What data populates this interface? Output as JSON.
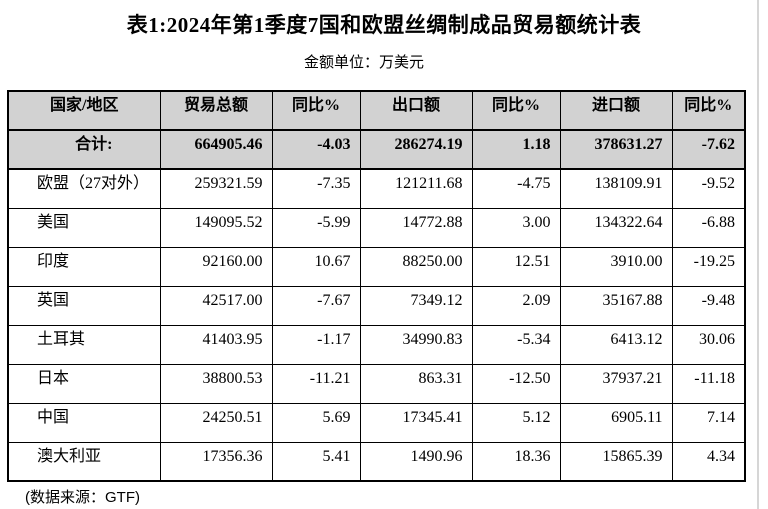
{
  "page": {
    "title": "表1:2024年第1季度7国和欧盟丝绸制成品贸易额统计表",
    "subtitle": "金额单位：万美元",
    "footer": "(数据来源：GTF)"
  },
  "table": {
    "headers": [
      "国家/地区",
      "贸易总额",
      "同比%",
      "出口额",
      "同比%",
      "进口额",
      "同比%"
    ],
    "total_row": {
      "label": "合计:",
      "values": [
        "664905.46",
        "-4.03",
        "286274.19",
        "1.18",
        "378631.27",
        "-7.62"
      ]
    },
    "rows": [
      {
        "label": "欧盟（27对外）",
        "values": [
          "259321.59",
          "-7.35",
          "121211.68",
          "-4.75",
          "138109.91",
          "-9.52"
        ]
      },
      {
        "label": "美国",
        "values": [
          "149095.52",
          "-5.99",
          "14772.88",
          "3.00",
          "134322.64",
          "-6.88"
        ]
      },
      {
        "label": "印度",
        "values": [
          "92160.00",
          "10.67",
          "88250.00",
          "12.51",
          "3910.00",
          "-19.25"
        ]
      },
      {
        "label": "英国",
        "values": [
          "42517.00",
          "-7.67",
          "7349.12",
          "2.09",
          "35167.88",
          "-9.48"
        ]
      },
      {
        "label": "土耳其",
        "values": [
          "41403.95",
          "-1.17",
          "34990.83",
          "-5.34",
          "6413.12",
          "30.06"
        ]
      },
      {
        "label": "日本",
        "values": [
          "38800.53",
          "-11.21",
          "863.31",
          "-12.50",
          "37937.21",
          "-11.18"
        ]
      },
      {
        "label": "中国",
        "values": [
          "24250.51",
          "5.69",
          "17345.41",
          "5.12",
          "6905.11",
          "7.14"
        ]
      },
      {
        "label": "澳大利亚",
        "values": [
          "17356.36",
          "5.41",
          "1490.96",
          "18.36",
          "15865.39",
          "4.34"
        ]
      }
    ]
  },
  "colors": {
    "row_shading": "#d2d2d2",
    "table_border": "#000000",
    "page_edge_line": "#d6d6d6"
  }
}
